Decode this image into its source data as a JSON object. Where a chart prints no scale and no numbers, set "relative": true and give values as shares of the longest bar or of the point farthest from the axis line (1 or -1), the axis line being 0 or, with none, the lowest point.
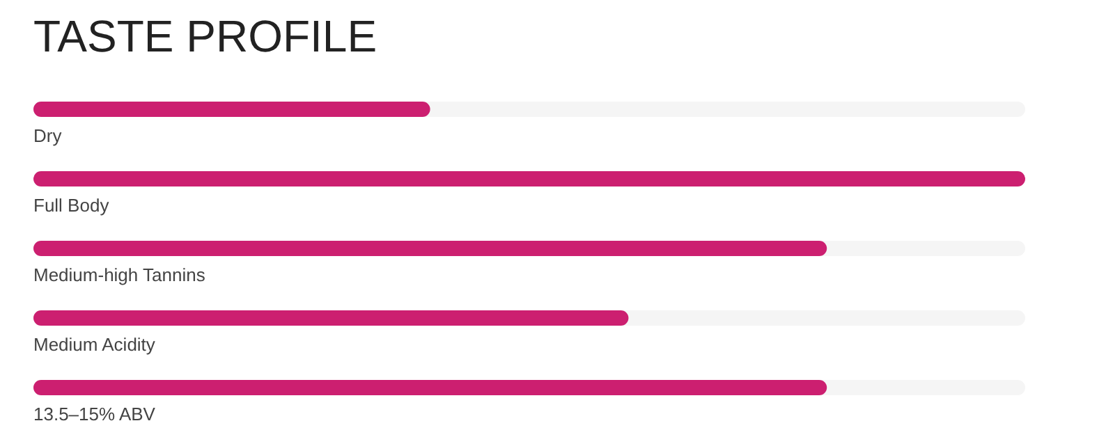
{
  "chart_data": {
    "type": "bar",
    "title": "TASTE PROFILE",
    "orientation": "horizontal",
    "relative": true,
    "categories": [
      "Dry",
      "Full Body",
      "Medium-high Tannins",
      "Medium Acidity",
      "13.5–15% ABV"
    ],
    "values": [
      0.4,
      1,
      0.8,
      0.6,
      0.8
    ],
    "color": "#cc1f70",
    "grid": false,
    "legend": false
  }
}
